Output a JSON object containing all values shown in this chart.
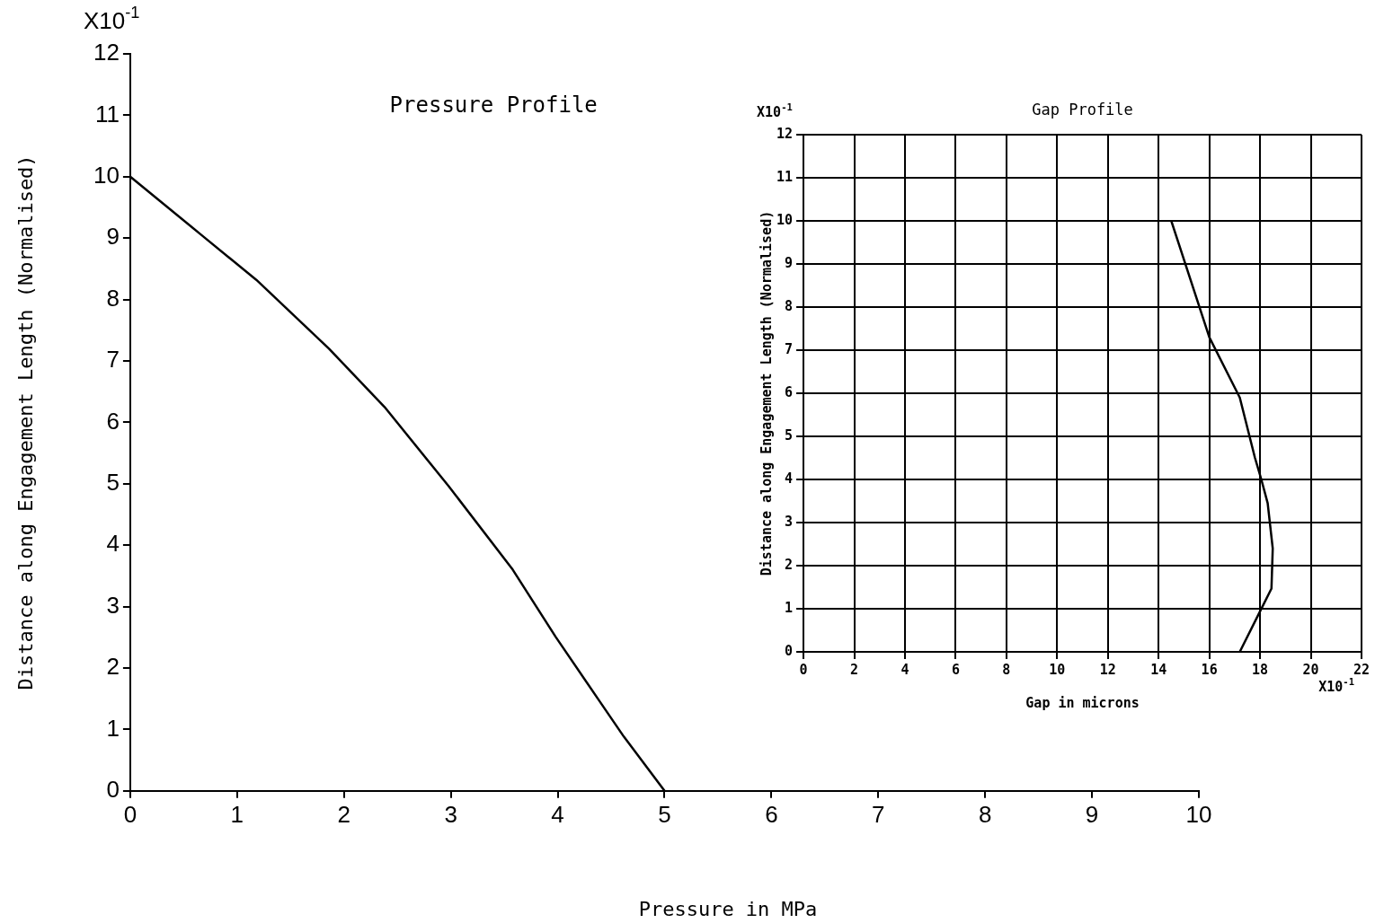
{
  "chart_data": [
    {
      "type": "line",
      "title": "Pressure Profile",
      "xlabel": "Pressure in MPa",
      "ylabel": "Distance along Engagement Length (Normalised)",
      "annotations": [
        "X10$^{-1}$"
      ],
      "x": [
        0,
        0.66,
        1.18,
        1.86,
        2.38,
        2.98,
        3.58,
        3.98,
        4.38,
        4.62,
        5
      ],
      "values": [
        10,
        9.06,
        8.32,
        7.2,
        6.25,
        4.96,
        3.6,
        2.51,
        1.49,
        0.88,
        0
      ],
      "color": "#000000",
      "xlim": [
        0,
        10
      ],
      "ylim": [
        0,
        12
      ],
      "xticks": [
        0,
        1,
        2,
        3,
        4,
        5,
        6,
        7,
        8,
        9,
        10
      ],
      "yticks": [
        0,
        1,
        2,
        3,
        4,
        5,
        6,
        7,
        8,
        9,
        10,
        11,
        12
      ],
      "grid": false,
      "legend": false,
      "marker": "none",
      "line_style": "solid"
    },
    {
      "type": "line",
      "title": "Gap Profile",
      "xlabel": "Gap in microns",
      "ylabel": "Distance along Engagement Length (Normalised)",
      "annotations": [
        "X10$^{-1}$",
        "X10$^{-1}$"
      ],
      "x": [
        14.5,
        16.0,
        17.2,
        17.8,
        18.05,
        18.3,
        18.5,
        18.45,
        18.0,
        17.2
      ],
      "values": [
        10,
        7.3,
        5.9,
        4.5,
        4.0,
        3.45,
        2.4,
        1.47,
        0.94,
        0
      ],
      "color": "#000000",
      "xlim": [
        0,
        22
      ],
      "ylim": [
        0,
        12
      ],
      "xticks": [
        0,
        2,
        4,
        6,
        8,
        10,
        12,
        14,
        16,
        18,
        20,
        22
      ],
      "yticks": [
        0,
        1,
        2,
        3,
        4,
        5,
        6,
        7,
        8,
        9,
        10,
        11,
        12
      ],
      "grid": true,
      "legend": false,
      "marker": "none",
      "line_style": "solid"
    }
  ]
}
